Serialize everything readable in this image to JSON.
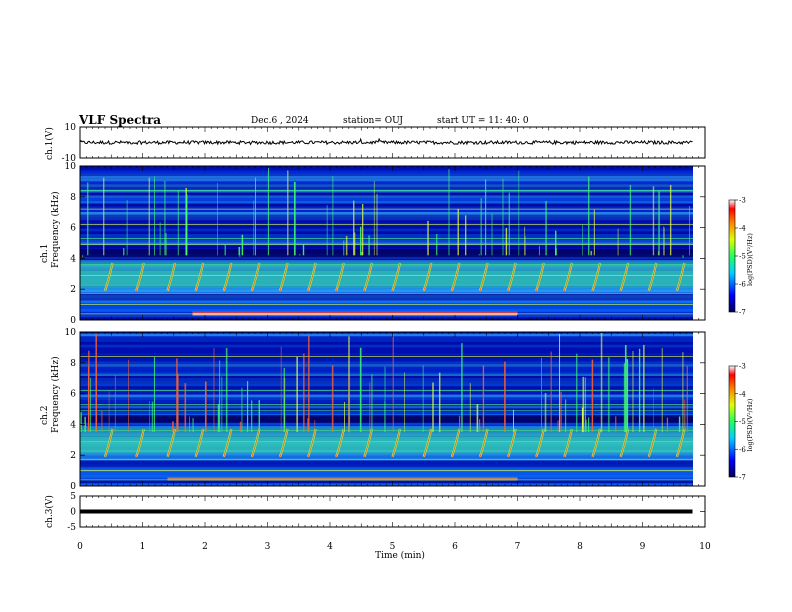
{
  "header": {
    "title": "VLF Spectra",
    "date": "Dec.6 , 2024",
    "station": "station= OUJ",
    "start": "start UT = 11: 40: 0"
  },
  "chart_data": [
    {
      "type": "line",
      "panel": "waveform-ch1",
      "ylabel": "ch.1(V)",
      "ylim": [
        -10,
        10
      ],
      "y_ticks": [
        "10",
        "-10"
      ],
      "xlim": [
        0,
        10
      ],
      "approx_level": 0,
      "line_color": "#000000"
    },
    {
      "type": "heatmap",
      "panel": "spectrogram-ch1",
      "ylabel": "ch.1\nFrequency (kHz)",
      "ylim": [
        0,
        10
      ],
      "y_ticks": [
        "0",
        "2",
        "4",
        "6",
        "8",
        "10"
      ],
      "xlim": [
        0,
        9.8
      ],
      "colorbar": {
        "title": "log(PSD)(V²/Hz)",
        "range": [
          -7,
          -3
        ],
        "ticks": [
          "-3",
          "-4",
          "-5",
          "-6",
          "-7"
        ]
      },
      "chorus_elements_min": [
        0.4,
        0.9,
        1.4,
        1.85,
        2.3,
        2.75,
        3.2,
        3.65,
        4.1,
        4.55,
        5.0,
        5.5,
        5.95,
        6.4,
        6.85,
        7.3,
        7.75,
        8.2,
        8.65,
        9.1,
        9.55
      ]
    },
    {
      "type": "heatmap",
      "panel": "spectrogram-ch2",
      "ylabel": "ch.2\nFrequency (kHz)",
      "ylim": [
        0,
        10
      ],
      "y_ticks": [
        "0",
        "2",
        "4",
        "6",
        "8",
        "10"
      ],
      "xlim": [
        0,
        9.8
      ],
      "colorbar": {
        "title": "log(PSD)(V²/Hz)",
        "range": [
          -7,
          -3
        ],
        "ticks": [
          "-3",
          "-4",
          "-5",
          "-6",
          "-7"
        ]
      },
      "chorus_elements_min": [
        0.4,
        0.9,
        1.4,
        1.85,
        2.3,
        2.75,
        3.2,
        3.65,
        4.1,
        4.55,
        5.0,
        5.5,
        5.95,
        6.4,
        6.85,
        7.3,
        7.75,
        8.2,
        8.65,
        9.1,
        9.55
      ]
    },
    {
      "type": "line",
      "panel": "waveform-ch3",
      "ylabel": "ch.3(V)",
      "ylim": [
        -5,
        5
      ],
      "y_ticks": [
        "5",
        "0",
        "-5"
      ],
      "xlim": [
        0,
        10
      ],
      "approx_level": 0,
      "line_color": "#000000"
    }
  ],
  "x_axis": {
    "title": "Time (min)",
    "ticks": [
      "0",
      "1",
      "2",
      "3",
      "4",
      "5",
      "6",
      "7",
      "8",
      "9",
      "10"
    ]
  },
  "colors": {
    "background": "#00008c",
    "band": "#32c8ff",
    "chorus": "#40e060",
    "hot": "#ff3020"
  }
}
